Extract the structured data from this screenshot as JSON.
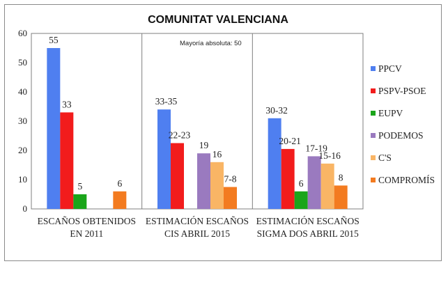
{
  "chart_data": {
    "type": "bar",
    "title": "COMUNITAT VALENCIANA",
    "annotation": "Mayoría absoluta: 50",
    "ylim": [
      0,
      60
    ],
    "yticks": [
      0,
      10,
      20,
      30,
      40,
      50,
      60
    ],
    "categories": [
      [
        "ESCAÑOS OBTENIDOS",
        "EN 2011"
      ],
      [
        "ESTIMACIÓN ESCAÑOS",
        "CIS ABRIL 2015"
      ],
      [
        "ESTIMACIÓN ESCAÑOS",
        "SIGMA DOS ABRIL 2015"
      ]
    ],
    "legend_position": "right",
    "series": [
      {
        "name": "PPCV",
        "color": "#4f7ff0",
        "values": [
          55,
          34,
          31
        ],
        "labels": [
          "55",
          "33-35",
          "30-32"
        ]
      },
      {
        "name": "PSPV-PSOE",
        "color": "#f21c1c",
        "values": [
          33,
          22.5,
          20.5
        ],
        "labels": [
          "33",
          "22-23",
          "20-21"
        ]
      },
      {
        "name": "EUPV",
        "color": "#1aa51a",
        "values": [
          5,
          null,
          6
        ],
        "labels": [
          "5",
          "",
          "6"
        ]
      },
      {
        "name": "PODEMOS",
        "color": "#9a7abf",
        "values": [
          null,
          19,
          18
        ],
        "labels": [
          "",
          "19",
          "17-19"
        ]
      },
      {
        "name": "C'S",
        "color": "#f9b565",
        "values": [
          null,
          16,
          15.5
        ],
        "labels": [
          "",
          "16",
          "15-16"
        ]
      },
      {
        "name": "COMPROMÍS",
        "color": "#f37b20",
        "values": [
          6,
          7.5,
          8
        ],
        "labels": [
          "6",
          "7-8",
          "8"
        ]
      }
    ]
  }
}
